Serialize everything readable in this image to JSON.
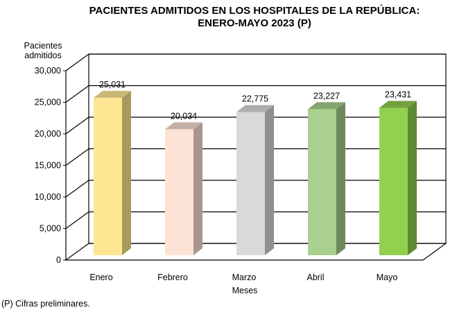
{
  "chart_data": {
    "type": "bar",
    "title": [
      "PACIENTES ADMITIDOS EN LOS HOSPITALES DE LA REPÚBLICA:",
      "ENERO-MAYO 2023 (P)"
    ],
    "ylabel": [
      "Pacientes",
      "admitidos"
    ],
    "xlabel": "Meses",
    "categories": [
      "Enero",
      "Febrero",
      "Marzo",
      "Abril",
      "Mayo"
    ],
    "values": [
      25031,
      20034,
      22775,
      23227,
      23431
    ],
    "data_labels": [
      "25,031",
      "20,034",
      "22,775",
      "23,227",
      "23,431"
    ],
    "ylim": [
      0,
      30000
    ],
    "yticks": [
      0,
      5000,
      10000,
      15000,
      20000,
      25000,
      30000
    ],
    "ytick_labels": [
      "0",
      "5,000",
      "10,000",
      "15,000",
      "20,000",
      "25,000",
      "30,000"
    ],
    "grid": true,
    "colors": [
      {
        "front": "#FFE693",
        "side": "#A89A5E",
        "top": "#C8B878"
      },
      {
        "front": "#FDE3D6",
        "side": "#A8968E",
        "top": "#C4B0A6"
      },
      {
        "front": "#D9D9D9",
        "side": "#8F8F8F",
        "top": "#ADADAD"
      },
      {
        "front": "#A9D08E",
        "side": "#6E8A5D",
        "top": "#86A570"
      },
      {
        "front": "#92D050",
        "side": "#5E8A33",
        "top": "#74A03E"
      }
    ],
    "footnote": "(P) Cifras  preliminares."
  }
}
